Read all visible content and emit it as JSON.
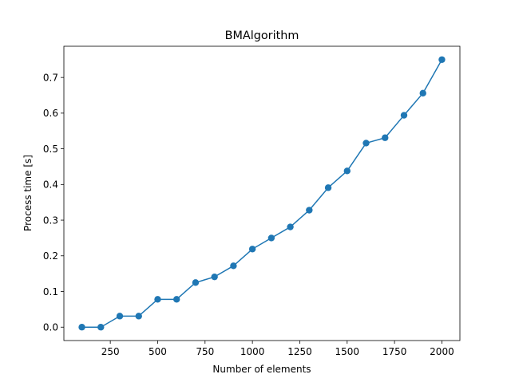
{
  "chart_data": {
    "type": "line",
    "title": "BMAlgorithm",
    "xlabel": "Number of elements",
    "ylabel": "Process time [s]",
    "xlim": [
      5,
      2095
    ],
    "ylim": [
      -0.0375,
      0.7875
    ],
    "xticks": [
      250,
      500,
      750,
      1000,
      1250,
      1500,
      1750,
      2000
    ],
    "xtick_labels": [
      "250",
      "500",
      "750",
      "1000",
      "1250",
      "1500",
      "1750",
      "2000"
    ],
    "yticks": [
      0.0,
      0.1,
      0.2,
      0.3,
      0.4,
      0.5,
      0.6,
      0.7
    ],
    "ytick_labels": [
      "0.0",
      "0.1",
      "0.2",
      "0.3",
      "0.4",
      "0.5",
      "0.6",
      "0.7"
    ],
    "grid": false,
    "legend": null,
    "series": [
      {
        "color": "#1f77b4",
        "marker": "circle",
        "x": [
          100,
          200,
          300,
          400,
          500,
          600,
          700,
          800,
          900,
          1000,
          1100,
          1200,
          1300,
          1400,
          1500,
          1600,
          1700,
          1800,
          1900,
          2000
        ],
        "y": [
          0.0,
          0.0,
          0.031,
          0.031,
          0.078,
          0.078,
          0.125,
          0.141,
          0.172,
          0.219,
          0.25,
          0.281,
          0.328,
          0.391,
          0.438,
          0.516,
          0.531,
          0.594,
          0.656,
          0.75
        ]
      }
    ]
  }
}
